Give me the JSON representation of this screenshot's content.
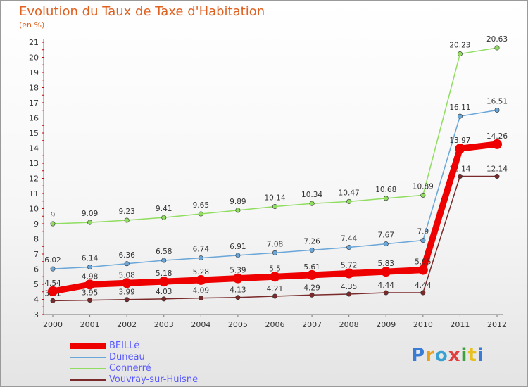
{
  "header": {
    "title": "Evolution du Taux de Taxe d'Habitation",
    "subtitle": "(en %)"
  },
  "colors": {
    "title": "#e06020",
    "legend_text": "#5a5aff",
    "axis_tick": "#cc0000"
  },
  "logo": {
    "text": "Proxiti",
    "letter_colors": [
      "#3a7bd5",
      "#e8a020",
      "#3aa0d0",
      "#e04040",
      "#40a040",
      "#e8c020",
      "#3a7bd5"
    ]
  },
  "chart_data": {
    "type": "line",
    "x": [
      2000,
      2001,
      2002,
      2003,
      2004,
      2005,
      2006,
      2007,
      2008,
      2009,
      2010,
      2011,
      2012
    ],
    "ylim": [
      3,
      21
    ],
    "yticks": [
      3,
      4,
      5,
      6,
      7,
      8,
      9,
      10,
      11,
      12,
      13,
      14,
      15,
      16,
      17,
      18,
      19,
      20,
      21
    ],
    "grid": false,
    "legend_position": "bottom-left",
    "series": [
      {
        "name": "BEILLé",
        "color": "#ee0000",
        "values": [
          4.54,
          4.98,
          5.08,
          5.18,
          5.28,
          5.39,
          5.5,
          5.61,
          5.72,
          5.83,
          5.95,
          13.97,
          14.26
        ],
        "labels": [
          "4.54",
          "4.98",
          "5.08",
          "5.18",
          "5.28",
          "5.39",
          "5.5",
          "5.61",
          "5.72",
          "5.83",
          "5.95",
          "13.97",
          "14.26"
        ]
      },
      {
        "name": "Duneau",
        "color": "#6aa6d8",
        "values": [
          6.02,
          6.14,
          6.36,
          6.58,
          6.74,
          6.91,
          7.08,
          7.26,
          7.44,
          7.67,
          7.9,
          16.11,
          16.51
        ],
        "labels": [
          "6.02",
          "6.14",
          "6.36",
          "6.58",
          "6.74",
          "6.91",
          "7.08",
          "7.26",
          "7.44",
          "7.67",
          "7.9",
          "16.11",
          "16.51"
        ]
      },
      {
        "name": "Connerré",
        "color": "#90dd60",
        "values": [
          9,
          9.09,
          9.23,
          9.41,
          9.65,
          9.89,
          10.14,
          10.34,
          10.47,
          10.68,
          10.89,
          20.23,
          20.63
        ],
        "labels": [
          "9",
          "9.09",
          "9.23",
          "9.41",
          "9.65",
          "9.89",
          "10.14",
          "10.34",
          "10.47",
          "10.68",
          "10.89",
          "20.23",
          "20.63"
        ]
      },
      {
        "name": "Vouvray-sur-Huisne",
        "color": "#7a2a2a",
        "values": [
          3.91,
          3.95,
          3.99,
          4.03,
          4.09,
          4.13,
          4.21,
          4.29,
          4.35,
          4.44,
          4.44,
          12.14,
          12.14
        ],
        "labels": [
          "3.91",
          "3.95",
          "3.99",
          "4.03",
          "4.09",
          "4.13",
          "4.21",
          "4.29",
          "4.35",
          "4.44",
          "4.44",
          "12.14",
          "12.14"
        ]
      }
    ]
  }
}
